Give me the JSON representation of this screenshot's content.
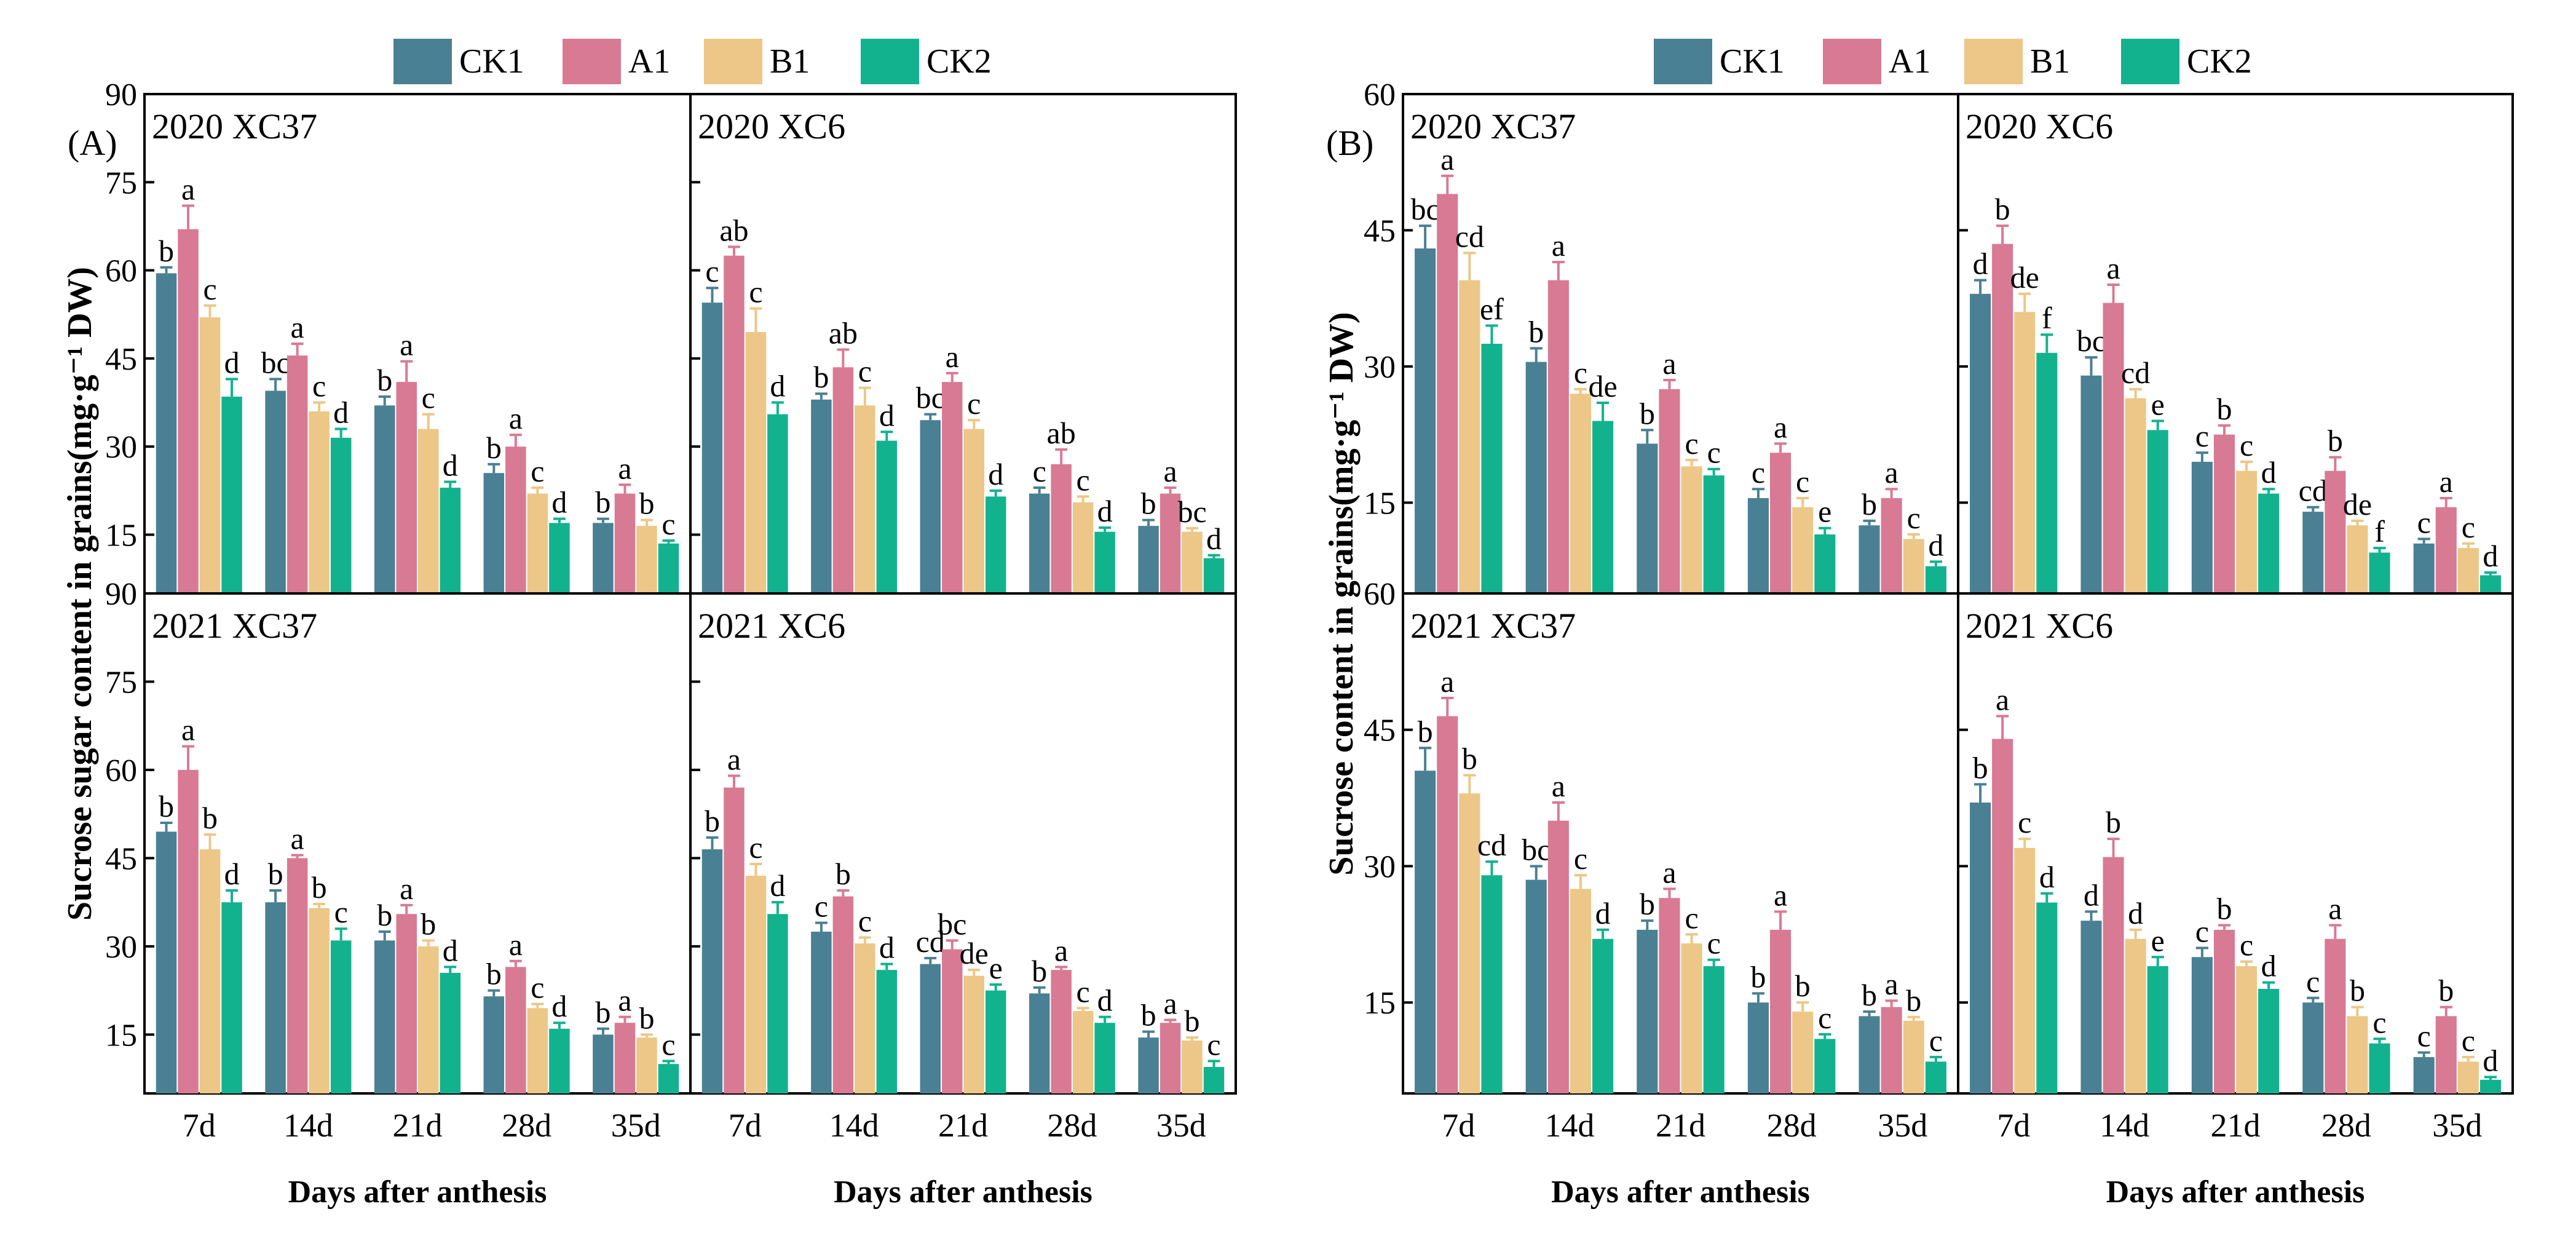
{
  "colors": {
    "CK1": "#4a8093",
    "A1": "#d87a94",
    "B1": "#ecc787",
    "CK2": "#13b28f",
    "axis": "#000000"
  },
  "figures": [
    {
      "panel_label": "(A)",
      "legend": [
        "CK1",
        "A1",
        "B1",
        "CK2"
      ],
      "ylabel": "Sucrose sugar content in grains(mg·g⁻¹ DW)",
      "xlabel_left": "Days after anthesis",
      "xlabel_right": "Days after anthesis"
    },
    {
      "panel_label": "(B)",
      "legend": [
        "CK1",
        "A1",
        "B1",
        "CK2"
      ],
      "ylabel": "Sucrose content in grains(mg·g⁻¹ DW)",
      "xlabel_left": "Days after anthesis",
      "xlabel_right": "Days after anthesis"
    }
  ],
  "chart_data": [
    {
      "type": "bar",
      "figure": "A",
      "title": "2020  XC37",
      "categories": [
        "7d",
        "14d",
        "21d",
        "28d",
        "35d"
      ],
      "ylim": [
        5,
        90
      ],
      "yticks": [
        15,
        30,
        45,
        60,
        75,
        90
      ],
      "show_yticklabels": true,
      "series": [
        {
          "name": "CK1",
          "values": [
            59.5,
            39.5,
            37,
            25.5,
            17
          ],
          "errors": [
            1,
            2,
            1.5,
            1.5,
            0.7
          ],
          "letters": [
            "b",
            "bc",
            "b",
            "b",
            "b"
          ]
        },
        {
          "name": "A1",
          "values": [
            67,
            45.5,
            41,
            30,
            22
          ],
          "errors": [
            4,
            2,
            3.5,
            2,
            1.5
          ],
          "letters": [
            "a",
            "a",
            "a",
            "a",
            "a"
          ]
        },
        {
          "name": "B1",
          "values": [
            52,
            36,
            33,
            22,
            16.5
          ],
          "errors": [
            2,
            1.5,
            2.5,
            1,
            1
          ],
          "letters": [
            "c",
            "c",
            "c",
            "c",
            "b"
          ]
        },
        {
          "name": "CK2",
          "values": [
            38.5,
            31.5,
            23,
            17,
            13.5
          ],
          "errors": [
            3,
            1.5,
            1,
            0.7,
            0.5
          ],
          "letters": [
            "d",
            "d",
            "d",
            "d",
            "c"
          ]
        }
      ]
    },
    {
      "type": "bar",
      "figure": "A",
      "title": "2020  XC6",
      "categories": [
        "7d",
        "14d",
        "21d",
        "28d",
        "35d"
      ],
      "ylim": [
        5,
        90
      ],
      "yticks": [
        15,
        30,
        45,
        60,
        75,
        90
      ],
      "show_yticklabels": false,
      "series": [
        {
          "name": "CK1",
          "values": [
            54.5,
            38,
            34.5,
            22,
            16.5
          ],
          "errors": [
            2.5,
            1,
            1,
            1,
            1
          ],
          "letters": [
            "c",
            "b",
            "bc",
            "c",
            "b"
          ]
        },
        {
          "name": "A1",
          "values": [
            62.5,
            43.5,
            41,
            27,
            22
          ],
          "errors": [
            1.5,
            3,
            1.5,
            2.5,
            1
          ],
          "letters": [
            "ab",
            "ab",
            "a",
            "ab",
            "a"
          ]
        },
        {
          "name": "B1",
          "values": [
            49.5,
            37,
            33,
            20.5,
            15.5
          ],
          "errors": [
            4,
            3,
            1.5,
            1,
            0.6
          ],
          "letters": [
            "c",
            "c",
            "c",
            "c",
            "bc"
          ]
        },
        {
          "name": "CK2",
          "values": [
            35.5,
            31,
            21.5,
            15.5,
            11
          ],
          "errors": [
            2,
            1.5,
            1,
            0.7,
            0.5
          ],
          "letters": [
            "d",
            "d",
            "d",
            "d",
            "d"
          ]
        }
      ]
    },
    {
      "type": "bar",
      "figure": "A",
      "title": "2021  XC37",
      "categories": [
        "7d",
        "14d",
        "21d",
        "28d",
        "35d"
      ],
      "ylim": [
        5,
        90
      ],
      "yticks": [
        15,
        30,
        45,
        60,
        75,
        90
      ],
      "show_yticklabels": true,
      "series": [
        {
          "name": "CK1",
          "values": [
            49.5,
            37.5,
            31,
            21.5,
            15
          ],
          "errors": [
            1.5,
            2,
            1.5,
            1,
            1
          ],
          "letters": [
            "b",
            "b",
            "b",
            "b",
            "b"
          ]
        },
        {
          "name": "A1",
          "values": [
            60,
            45,
            35.5,
            26.5,
            17
          ],
          "errors": [
            4,
            0.5,
            1.5,
            1,
            1
          ],
          "letters": [
            "a",
            "a",
            "a",
            "a",
            "a"
          ]
        },
        {
          "name": "B1",
          "values": [
            46.5,
            36.5,
            30,
            19.5,
            14.5
          ],
          "errors": [
            2.5,
            0.7,
            1,
            0.7,
            0.5
          ],
          "letters": [
            "b",
            "b",
            "b",
            "c",
            "b"
          ]
        },
        {
          "name": "CK2",
          "values": [
            37.5,
            31,
            25.5,
            16,
            10
          ],
          "errors": [
            2,
            2,
            1,
            1,
            0.5
          ],
          "letters": [
            "d",
            "c",
            "d",
            "d",
            "c"
          ]
        }
      ]
    },
    {
      "type": "bar",
      "figure": "A",
      "title": "2021  XC6",
      "categories": [
        "7d",
        "14d",
        "21d",
        "28d",
        "35d"
      ],
      "ylim": [
        5,
        90
      ],
      "yticks": [
        15,
        30,
        45,
        60,
        75,
        90
      ],
      "show_yticklabels": false,
      "series": [
        {
          "name": "CK1",
          "values": [
            46.5,
            32.5,
            27,
            22,
            14.5
          ],
          "errors": [
            2,
            1.5,
            1,
            1,
            1
          ],
          "letters": [
            "b",
            "c",
            "cd",
            "b",
            "b"
          ]
        },
        {
          "name": "A1",
          "values": [
            57,
            38.5,
            29.5,
            26,
            17
          ],
          "errors": [
            2,
            1,
            1.5,
            0.5,
            0.5
          ],
          "letters": [
            "a",
            "b",
            "bc",
            "a",
            "a"
          ]
        },
        {
          "name": "B1",
          "values": [
            42,
            30.5,
            25,
            19,
            14
          ],
          "errors": [
            2,
            1,
            1,
            0.5,
            0.5
          ],
          "letters": [
            "c",
            "c",
            "de",
            "c",
            "b"
          ]
        },
        {
          "name": "CK2",
          "values": [
            35.5,
            26,
            22.5,
            17,
            9.5
          ],
          "errors": [
            2,
            1,
            1,
            1,
            1
          ],
          "letters": [
            "d",
            "d",
            "e",
            "d",
            "c"
          ]
        }
      ]
    },
    {
      "type": "bar",
      "figure": "B",
      "title": "2020  XC37",
      "categories": [
        "7d",
        "14d",
        "21d",
        "28d",
        "35d"
      ],
      "ylim": [
        5,
        60
      ],
      "yticks": [
        15,
        30,
        45,
        60
      ],
      "show_yticklabels": true,
      "series": [
        {
          "name": "CK1",
          "values": [
            43,
            30.5,
            21.5,
            15.5,
            12.5
          ],
          "errors": [
            2.5,
            1.5,
            1.5,
            1,
            0.5
          ],
          "letters": [
            "bc",
            "b",
            "b",
            "c",
            "b"
          ]
        },
        {
          "name": "A1",
          "values": [
            49,
            39.5,
            27.5,
            20.5,
            15.5
          ],
          "errors": [
            2,
            2,
            1,
            1,
            1
          ],
          "letters": [
            "a",
            "a",
            "a",
            "a",
            "a"
          ]
        },
        {
          "name": "B1",
          "values": [
            39.5,
            27,
            19,
            14.5,
            11
          ],
          "errors": [
            3,
            0.5,
            0.7,
            1,
            0.5
          ],
          "letters": [
            "cd",
            "c",
            "c",
            "c",
            "c"
          ]
        },
        {
          "name": "CK2",
          "values": [
            32.5,
            24,
            18,
            11.5,
            8
          ],
          "errors": [
            2,
            2,
            0.7,
            0.7,
            0.5
          ],
          "letters": [
            "ef",
            "de",
            "c",
            "e",
            "d"
          ]
        }
      ]
    },
    {
      "type": "bar",
      "figure": "B",
      "title": "2020  XC6",
      "categories": [
        "7d",
        "14d",
        "21d",
        "28d",
        "35d"
      ],
      "ylim": [
        5,
        60
      ],
      "yticks": [
        15,
        30,
        45,
        60
      ],
      "show_yticklabels": false,
      "series": [
        {
          "name": "CK1",
          "values": [
            38,
            29,
            19.5,
            14,
            10.5
          ],
          "errors": [
            1.5,
            2,
            1,
            0.5,
            0.5
          ],
          "letters": [
            "d",
            "bc",
            "c",
            "cd",
            "c"
          ]
        },
        {
          "name": "A1",
          "values": [
            43.5,
            37,
            22.5,
            18.5,
            14.5
          ],
          "errors": [
            2,
            2,
            1,
            1.5,
            1
          ],
          "letters": [
            "b",
            "a",
            "b",
            "b",
            "a"
          ]
        },
        {
          "name": "B1",
          "values": [
            36,
            26.5,
            18.5,
            12.5,
            10
          ],
          "errors": [
            2,
            1,
            1,
            0.5,
            0.5
          ],
          "letters": [
            "de",
            "cd",
            "c",
            "de",
            "c"
          ]
        },
        {
          "name": "CK2",
          "values": [
            31.5,
            23,
            16,
            9.5,
            7
          ],
          "errors": [
            2,
            1,
            0.5,
            0.5,
            0.3
          ],
          "letters": [
            "f",
            "e",
            "d",
            "f",
            "d"
          ]
        }
      ]
    },
    {
      "type": "bar",
      "figure": "B",
      "title": "2021  XC37",
      "categories": [
        "7d",
        "14d",
        "21d",
        "28d",
        "35d"
      ],
      "ylim": [
        5,
        60
      ],
      "yticks": [
        15,
        30,
        45,
        60
      ],
      "show_yticklabels": true,
      "series": [
        {
          "name": "CK1",
          "values": [
            40.5,
            28.5,
            23,
            15,
            13.5
          ],
          "errors": [
            2.5,
            1.5,
            1,
            1,
            0.5
          ],
          "letters": [
            "b",
            "bc",
            "b",
            "b",
            "b"
          ]
        },
        {
          "name": "A1",
          "values": [
            46.5,
            35,
            26.5,
            23,
            14.5
          ],
          "errors": [
            2,
            2,
            1,
            2,
            0.7
          ],
          "letters": [
            "a",
            "a",
            "a",
            "a",
            "a"
          ]
        },
        {
          "name": "B1",
          "values": [
            38,
            27.5,
            21.5,
            14,
            13
          ],
          "errors": [
            2,
            1.5,
            1,
            1,
            0.4
          ],
          "letters": [
            "b",
            "c",
            "c",
            "b",
            "b"
          ]
        },
        {
          "name": "CK2",
          "values": [
            29,
            22,
            19,
            11,
            8.5
          ],
          "errors": [
            1.5,
            1,
            0.7,
            0.5,
            0.5
          ],
          "letters": [
            "cd",
            "d",
            "c",
            "c",
            "c"
          ]
        }
      ]
    },
    {
      "type": "bar",
      "figure": "B",
      "title": "2021  XC6",
      "categories": [
        "7d",
        "14d",
        "21d",
        "28d",
        "35d"
      ],
      "ylim": [
        5,
        60
      ],
      "yticks": [
        15,
        30,
        45,
        60
      ],
      "show_yticklabels": false,
      "series": [
        {
          "name": "CK1",
          "values": [
            37,
            24,
            20,
            15,
            9
          ],
          "errors": [
            2,
            1,
            1,
            0.5,
            0.5
          ],
          "letters": [
            "b",
            "d",
            "c",
            "c",
            "c"
          ]
        },
        {
          "name": "A1",
          "values": [
            44,
            31,
            23,
            22,
            13.5
          ],
          "errors": [
            2.5,
            2,
            0.5,
            1.5,
            1
          ],
          "letters": [
            "a",
            "b",
            "b",
            "a",
            "b"
          ]
        },
        {
          "name": "B1",
          "values": [
            32,
            22,
            19,
            13.5,
            8.5
          ],
          "errors": [
            1,
            1,
            0.5,
            1,
            0.5
          ],
          "letters": [
            "c",
            "d",
            "c",
            "b",
            "c"
          ]
        },
        {
          "name": "CK2",
          "values": [
            26,
            19,
            16.5,
            10.5,
            6.5
          ],
          "errors": [
            1,
            1,
            0.7,
            0.5,
            0.3
          ],
          "letters": [
            "d",
            "e",
            "d",
            "c",
            "d"
          ]
        }
      ]
    }
  ]
}
